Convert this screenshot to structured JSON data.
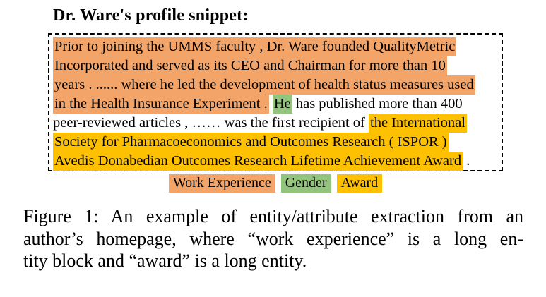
{
  "title": "Dr. Ware's profile snippet:",
  "entity_colors": {
    "work": "#F3A468",
    "gender": "#93C47D",
    "award": "#FEC101"
  },
  "profile_box": {
    "lines": [
      {
        "segments": [
          {
            "text": "Prior to joining the UMMS faculty , Dr. Ware founded QualityMetric",
            "type": "work"
          }
        ]
      },
      {
        "segments": [
          {
            "text": "Incorporated and served as its CEO and Chairman for more than 10",
            "type": "work"
          }
        ]
      },
      {
        "segments": [
          {
            "text": "years . ...... where he led the development of health status measures used",
            "type": "work"
          }
        ]
      },
      {
        "segments": [
          {
            "text": "in the Health Insurance Experiment .",
            "type": "work"
          },
          {
            "text": " ",
            "type": "none"
          },
          {
            "text": "He",
            "type": "gender"
          },
          {
            "text": " has published more than 400",
            "type": "none"
          }
        ]
      },
      {
        "segments": [
          {
            "text": "peer-reviewed articles , …… was the first recipient of ",
            "type": "none"
          },
          {
            "text": "the International",
            "type": "award"
          }
        ]
      },
      {
        "segments": [
          {
            "text": "Society for Pharmacoeconomics and Outcomes Research ( ISPOR )",
            "type": "award"
          }
        ]
      },
      {
        "segments": [
          {
            "text": "Avedis Donabedian Outcomes Research Lifetime Achievement Award",
            "type": "award"
          },
          {
            "text": " .",
            "type": "none"
          }
        ]
      }
    ]
  },
  "legend": {
    "items": [
      {
        "label": "Work Experience",
        "type": "work"
      },
      {
        "label": "Gender",
        "type": "gender"
      },
      {
        "label": "Award",
        "type": "award"
      }
    ]
  },
  "caption": {
    "lines": [
      "Figure 1: An example of entity/attribute extraction from an",
      "author’s homepage, where “work experience” is a long en-",
      "tity block and “award” is a long entity."
    ]
  }
}
